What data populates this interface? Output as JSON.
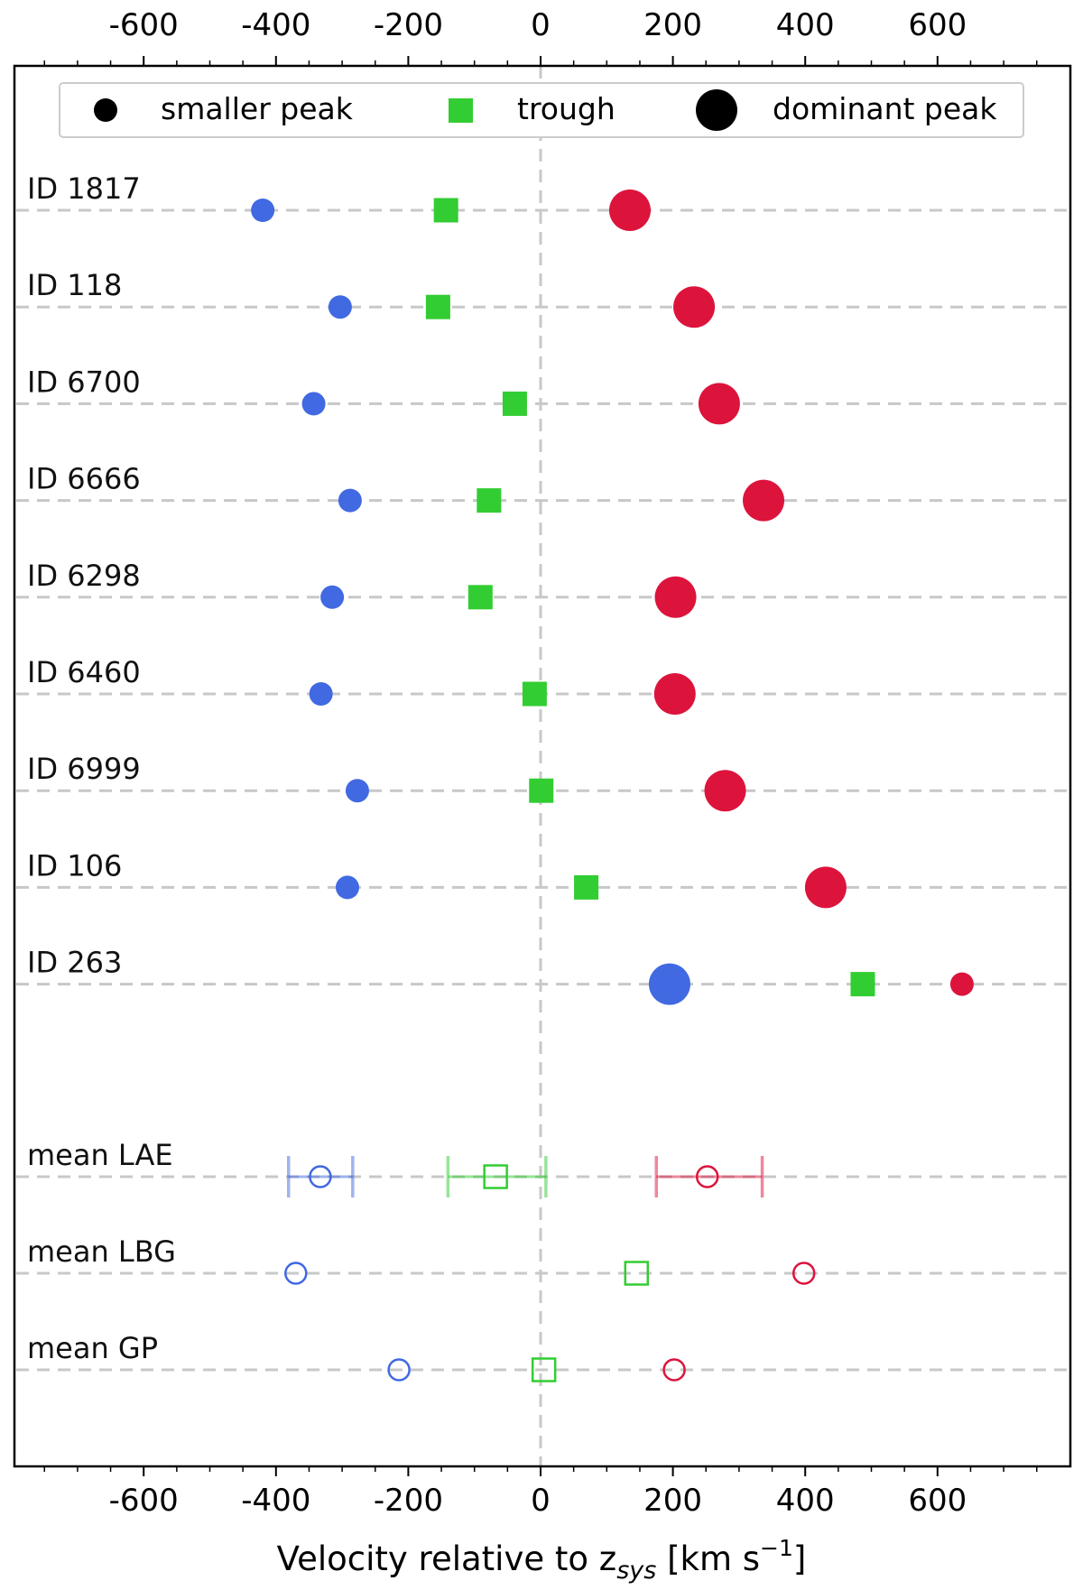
{
  "chart_data": {
    "type": "scatter",
    "xlabel_prefix": "Velocity relative to z",
    "xlabel_sub": "sys",
    "xlabel_units": " [km s",
    "xlabel_exp": "−1",
    "xlabel_end": "]",
    "xlim": [
      -790,
      800
    ],
    "x_ticks": [
      -600,
      -400,
      -200,
      0,
      200,
      400,
      600
    ],
    "x_tick_labels": [
      "-600",
      "-400",
      "-200",
      "0",
      "200",
      "400",
      "600"
    ],
    "grid": "horizontal dashed guide lines per object, vertical dashed line at 0",
    "legend": {
      "placement": "top",
      "entries": [
        {
          "label": "smaller peak",
          "marker": "small-circle"
        },
        {
          "label": "trough",
          "marker": "square"
        },
        {
          "label": "dominant peak",
          "marker": "large-circle"
        }
      ]
    },
    "colors": {
      "blue": "#4169e1",
      "green": "#32cd32",
      "red": "#dc143c",
      "guide": "#c8c8c8"
    },
    "objects": [
      {
        "label": "ID 1817",
        "blue": -420,
        "trough": -143,
        "red": 135,
        "dominant": "red"
      },
      {
        "label": "ID 118",
        "blue": -303,
        "trough": -155,
        "red": 232,
        "dominant": "red"
      },
      {
        "label": "ID 6700",
        "blue": -343,
        "trough": -39,
        "red": 270,
        "dominant": "red"
      },
      {
        "label": "ID 6666",
        "blue": -288,
        "trough": -78,
        "red": 337,
        "dominant": "red"
      },
      {
        "label": "ID 6298",
        "blue": -315,
        "trough": -91,
        "red": 204,
        "dominant": "red"
      },
      {
        "label": "ID 6460",
        "blue": -332,
        "trough": -9,
        "red": 203,
        "dominant": "red"
      },
      {
        "label": "ID 6999",
        "blue": -277,
        "trough": 1,
        "red": 279,
        "dominant": "red"
      },
      {
        "label": "ID 106",
        "blue": -292,
        "trough": 69,
        "red": 431,
        "dominant": "red"
      },
      {
        "label": "ID 263",
        "blue": 195,
        "trough": 487,
        "red": 637,
        "dominant": "blue"
      }
    ],
    "means": [
      {
        "label": "mean LAE",
        "blue": -333,
        "blue_err": [
          -381,
          -284
        ],
        "trough": -68,
        "trough_err": [
          -140,
          8
        ],
        "red": 252,
        "red_err": [
          175,
          335
        ]
      },
      {
        "label": "mean LBG",
        "blue": -370,
        "trough": 145,
        "red": 398
      },
      {
        "label": "mean GP",
        "blue": -214,
        "trough": 5,
        "red": 202
      }
    ]
  }
}
